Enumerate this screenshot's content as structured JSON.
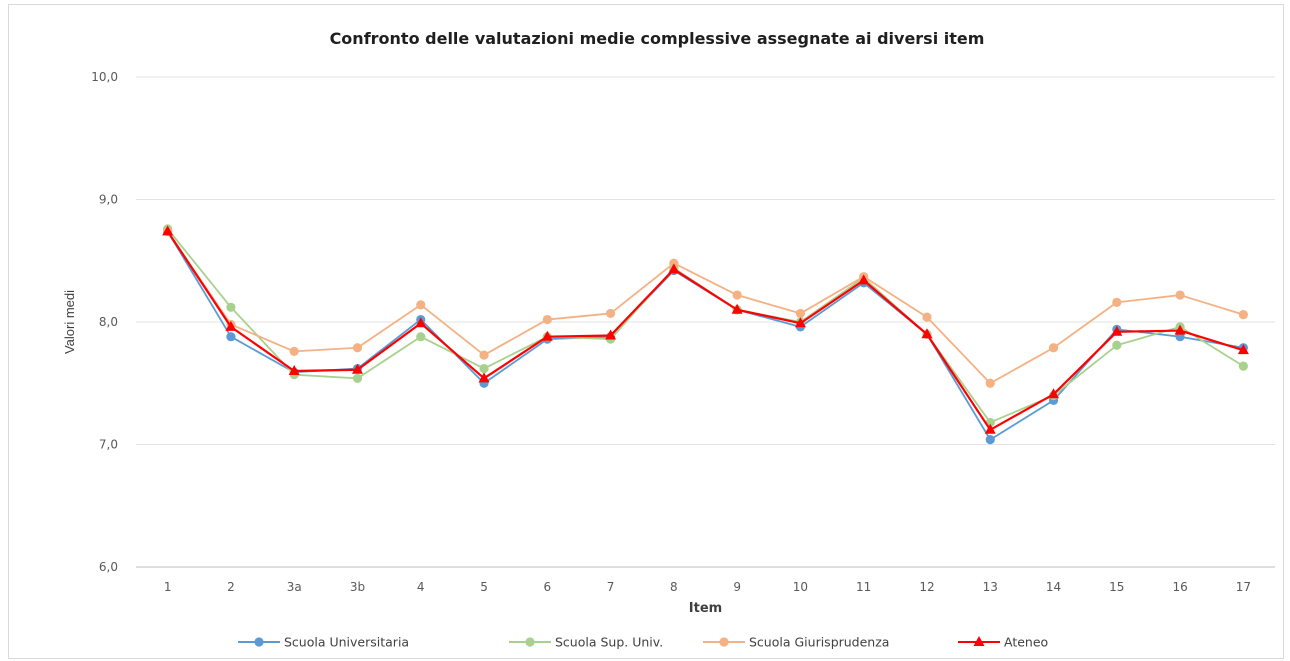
{
  "chart_data": {
    "type": "line",
    "title": "Confronto delle valutazioni medie complessive assegnate ai diversi item",
    "xlabel": "Item",
    "ylabel": "Valori medi",
    "categories": [
      "1",
      "2",
      "3a",
      "3b",
      "4",
      "5",
      "6",
      "7",
      "8",
      "9",
      "10",
      "11",
      "12",
      "13",
      "14",
      "15",
      "16",
      "17"
    ],
    "ylim": [
      6,
      10
    ],
    "yticks": [
      "6,0",
      "7,0",
      "8,0",
      "9,0",
      "10,0"
    ],
    "grid": true,
    "legend_position": "bottom",
    "series": [
      {
        "name": "Scuola Universitaria",
        "color": "#5b9bd5",
        "marker": "circle",
        "values": [
          8.74,
          7.88,
          7.59,
          7.62,
          8.02,
          7.5,
          7.86,
          7.88,
          8.42,
          8.1,
          7.96,
          8.32,
          7.9,
          7.04,
          7.36,
          7.94,
          7.88,
          7.79
        ]
      },
      {
        "name": "Scuola Sup. Univ.",
        "color": "#a9d18e",
        "marker": "circle",
        "values": [
          8.76,
          8.12,
          7.57,
          7.54,
          7.88,
          7.62,
          7.88,
          7.86,
          8.44,
          8.1,
          8.0,
          8.36,
          7.9,
          7.18,
          7.4,
          7.81,
          7.96,
          7.64
        ]
      },
      {
        "name": "Scuola Giurisprudenza",
        "color": "#f4b183",
        "marker": "circle",
        "values": [
          8.74,
          7.98,
          7.76,
          7.79,
          8.14,
          7.73,
          8.02,
          8.07,
          8.48,
          8.22,
          8.07,
          8.37,
          8.04,
          7.5,
          7.79,
          8.16,
          8.22,
          8.06
        ]
      },
      {
        "name": "Ateneo",
        "color": "#ff0000",
        "marker": "triangle",
        "values": [
          8.74,
          7.96,
          7.6,
          7.61,
          7.99,
          7.54,
          7.88,
          7.89,
          8.43,
          8.1,
          7.99,
          8.34,
          7.9,
          7.12,
          7.41,
          7.92,
          7.93,
          7.77
        ]
      }
    ]
  }
}
